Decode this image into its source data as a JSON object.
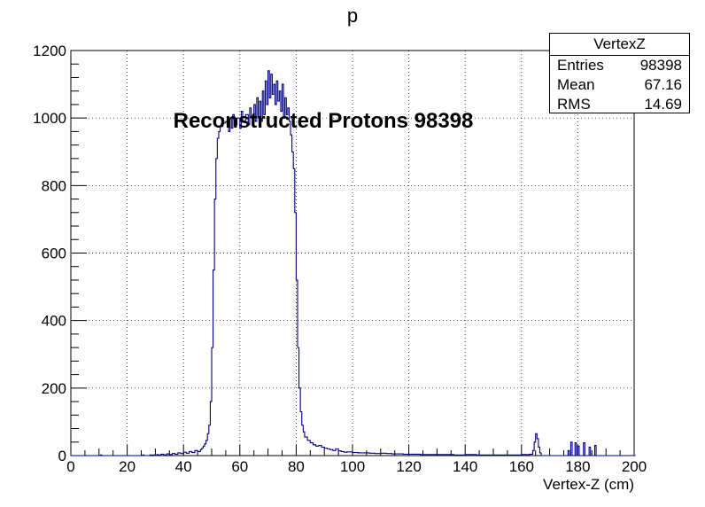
{
  "chart_data": {
    "type": "histogram",
    "title": "p",
    "xlabel": "Vertex-Z (cm)",
    "ylabel": "",
    "xlim": [
      0,
      200
    ],
    "ylim": [
      0,
      1200
    ],
    "grid": true,
    "x_ticks": [
      "0",
      "20",
      "40",
      "60",
      "80",
      "100",
      "120",
      "140",
      "160",
      "180",
      "200"
    ],
    "y_ticks": [
      "0",
      "200",
      "400",
      "600",
      "800",
      "1000",
      "1200"
    ],
    "annotation": "Reconstructed Protons 98398",
    "line_color": "#00007f",
    "bin_width": 0.5,
    "bins": [
      [
        0,
        0
      ],
      [
        10,
        0
      ],
      [
        10.5,
        2
      ],
      [
        11,
        0
      ],
      [
        25,
        0
      ],
      [
        25.5,
        2
      ],
      [
        26,
        0
      ],
      [
        28,
        2
      ],
      [
        30,
        0
      ],
      [
        30.5,
        3
      ],
      [
        31,
        2
      ],
      [
        32,
        4
      ],
      [
        33,
        2
      ],
      [
        34,
        5
      ],
      [
        35,
        3
      ],
      [
        36,
        6
      ],
      [
        37,
        4
      ],
      [
        38,
        8
      ],
      [
        39,
        6
      ],
      [
        40,
        10
      ],
      [
        41,
        7
      ],
      [
        42,
        12
      ],
      [
        43,
        9
      ],
      [
        44,
        15
      ],
      [
        45,
        12
      ],
      [
        46,
        18
      ],
      [
        46.5,
        22
      ],
      [
        47,
        28
      ],
      [
        47.5,
        35
      ],
      [
        48,
        45
      ],
      [
        48.5,
        65
      ],
      [
        49,
        90
      ],
      [
        49.5,
        160
      ],
      [
        50,
        320
      ],
      [
        50.5,
        550
      ],
      [
        51,
        760
      ],
      [
        51.5,
        880
      ],
      [
        52,
        940
      ],
      [
        52.5,
        960
      ],
      [
        53,
        975
      ],
      [
        54,
        985
      ],
      [
        55,
        990
      ],
      [
        56,
        960
      ],
      [
        56.5,
        1000
      ],
      [
        57,
        970
      ],
      [
        57.5,
        1010
      ],
      [
        58,
        980
      ],
      [
        59,
        1000
      ],
      [
        60,
        970
      ],
      [
        60.5,
        1020
      ],
      [
        61,
        990
      ],
      [
        62,
        1010
      ],
      [
        63,
        980
      ],
      [
        63.5,
        1030
      ],
      [
        64,
        1000
      ],
      [
        65,
        1040
      ],
      [
        65.5,
        990
      ],
      [
        66,
        1060
      ],
      [
        66.5,
        1000
      ],
      [
        67,
        1050
      ],
      [
        67.5,
        990
      ],
      [
        68,
        1080
      ],
      [
        68.5,
        1010
      ],
      [
        69,
        1110
      ],
      [
        69.5,
        1040
      ],
      [
        70,
        1140
      ],
      [
        70.5,
        1060
      ],
      [
        71,
        1130
      ],
      [
        71.5,
        1070
      ],
      [
        72,
        1100
      ],
      [
        72.5,
        1040
      ],
      [
        73,
        1110
      ],
      [
        73.5,
        1050
      ],
      [
        74,
        1080
      ],
      [
        74.5,
        1020
      ],
      [
        75,
        1100
      ],
      [
        75.5,
        1000
      ],
      [
        76,
        1060
      ],
      [
        76.5,
        1010
      ],
      [
        77,
        1030
      ],
      [
        77.5,
        990
      ],
      [
        78,
        950
      ],
      [
        78.5,
        900
      ],
      [
        79,
        850
      ],
      [
        79.5,
        720
      ],
      [
        80,
        520
      ],
      [
        80.5,
        320
      ],
      [
        81,
        200
      ],
      [
        81.5,
        130
      ],
      [
        82,
        90
      ],
      [
        82.5,
        70
      ],
      [
        83,
        55
      ],
      [
        84,
        45
      ],
      [
        85,
        38
      ],
      [
        86,
        32
      ],
      [
        87,
        28
      ],
      [
        88,
        30
      ],
      [
        89,
        25
      ],
      [
        90,
        22
      ],
      [
        91,
        20
      ],
      [
        92,
        18
      ],
      [
        93,
        15
      ],
      [
        94,
        20
      ],
      [
        95,
        14
      ],
      [
        96,
        12
      ],
      [
        97,
        10
      ],
      [
        98,
        11
      ],
      [
        100,
        9
      ],
      [
        102,
        8
      ],
      [
        104,
        8
      ],
      [
        106,
        7
      ],
      [
        108,
        6
      ],
      [
        110,
        7
      ],
      [
        112,
        6
      ],
      [
        114,
        5
      ],
      [
        116,
        5
      ],
      [
        118,
        4
      ],
      [
        120,
        4
      ],
      [
        124,
        3
      ],
      [
        128,
        3
      ],
      [
        132,
        3
      ],
      [
        136,
        2
      ],
      [
        140,
        3
      ],
      [
        144,
        2
      ],
      [
        148,
        2
      ],
      [
        152,
        2
      ],
      [
        156,
        2
      ],
      [
        160,
        3
      ],
      [
        162,
        3
      ],
      [
        163,
        4
      ],
      [
        164,
        15
      ],
      [
        164.5,
        40
      ],
      [
        165,
        65
      ],
      [
        165.5,
        50
      ],
      [
        166,
        25
      ],
      [
        166.5,
        8
      ],
      [
        167,
        0
      ],
      [
        176,
        0
      ],
      [
        176.5,
        15
      ],
      [
        177,
        0
      ],
      [
        177.5,
        40
      ],
      [
        178,
        0
      ],
      [
        179,
        38
      ],
      [
        179.5,
        0
      ],
      [
        180,
        28
      ],
      [
        180.5,
        0
      ],
      [
        182,
        38
      ],
      [
        182.5,
        0
      ],
      [
        184,
        25
      ],
      [
        184.5,
        0
      ],
      [
        186,
        30
      ],
      [
        186.5,
        0
      ],
      [
        188,
        0
      ],
      [
        200,
        0
      ]
    ]
  },
  "stats": {
    "title": "VertexZ",
    "rows": [
      {
        "label": "Entries",
        "value": "98398"
      },
      {
        "label": "Mean",
        "value": "67.16"
      },
      {
        "label": "RMS",
        "value": "14.69"
      }
    ]
  }
}
